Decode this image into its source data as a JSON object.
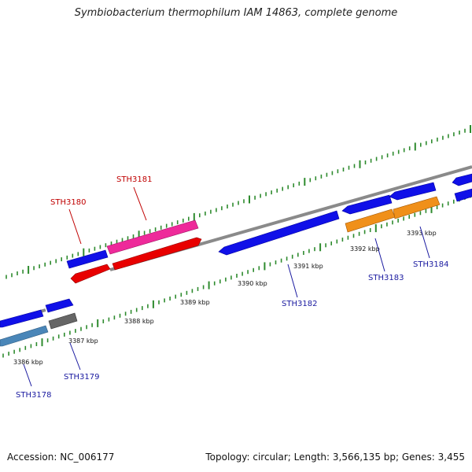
{
  "title": "Symbiobacterium thermophilum IAM 14863, complete genome",
  "footer": {
    "accession": "Accession: NC_006177",
    "summary": "Topology: circular; Length: 3,566,135 bp; Genes: 3,455"
  },
  "colors": {
    "backbone": "#8a8a8a",
    "tick": "#2e8b2e",
    "blue_gene": "#1010e8",
    "red_gene": "#e80000",
    "pink_gene": "#ee2a9a",
    "orange_gene": "#f0901a",
    "grey_gene": "#666666",
    "steel_gene": "#4a86b8",
    "label_blue": "#1a1aa0",
    "label_red": "#c00000"
  },
  "scale_labels": [
    "3386 kbp",
    "3387 kbp",
    "3388 kbp",
    "3389 kbp",
    "3390 kbp",
    "3391 kbp",
    "3392 kbp",
    "3393 kbp"
  ],
  "gene_labels": [
    {
      "text": "STH3178",
      "color": "blue"
    },
    {
      "text": "STH3179",
      "color": "blue"
    },
    {
      "text": "STH3180",
      "color": "red"
    },
    {
      "text": "STH3181",
      "color": "red"
    },
    {
      "text": "STH3182",
      "color": "blue"
    },
    {
      "text": "STH3183",
      "color": "blue"
    },
    {
      "text": "STH3184",
      "color": "blue"
    }
  ]
}
